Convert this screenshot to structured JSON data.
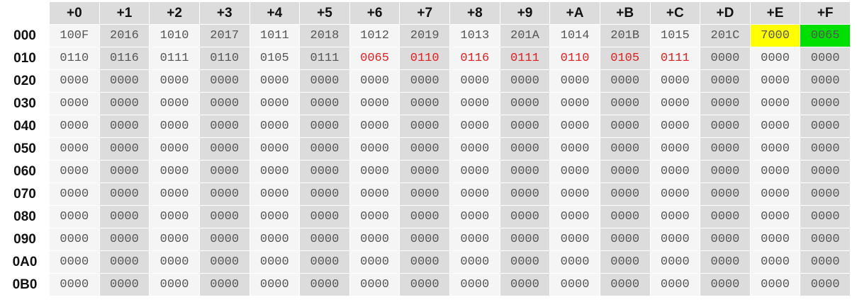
{
  "column_headers": [
    "+0",
    "+1",
    "+2",
    "+3",
    "+4",
    "+5",
    "+6",
    "+7",
    "+8",
    "+9",
    "+A",
    "+B",
    "+C",
    "+D",
    "+E",
    "+F"
  ],
  "rows": [
    {
      "address": "000",
      "cells": [
        "100F",
        "2016",
        "1010",
        "2017",
        "1011",
        "2018",
        "1012",
        "2019",
        "1013",
        "201A",
        "1014",
        "201B",
        "1015",
        "201C",
        "7000",
        "0065"
      ]
    },
    {
      "address": "010",
      "cells": [
        "0110",
        "0116",
        "0111",
        "0110",
        "0105",
        "0111",
        "0065",
        "0110",
        "0116",
        "0111",
        "0110",
        "0105",
        "0111",
        "0000",
        "0000",
        "0000"
      ]
    },
    {
      "address": "020",
      "cells": [
        "0000",
        "0000",
        "0000",
        "0000",
        "0000",
        "0000",
        "0000",
        "0000",
        "0000",
        "0000",
        "0000",
        "0000",
        "0000",
        "0000",
        "0000",
        "0000"
      ]
    },
    {
      "address": "030",
      "cells": [
        "0000",
        "0000",
        "0000",
        "0000",
        "0000",
        "0000",
        "0000",
        "0000",
        "0000",
        "0000",
        "0000",
        "0000",
        "0000",
        "0000",
        "0000",
        "0000"
      ]
    },
    {
      "address": "040",
      "cells": [
        "0000",
        "0000",
        "0000",
        "0000",
        "0000",
        "0000",
        "0000",
        "0000",
        "0000",
        "0000",
        "0000",
        "0000",
        "0000",
        "0000",
        "0000",
        "0000"
      ]
    },
    {
      "address": "050",
      "cells": [
        "0000",
        "0000",
        "0000",
        "0000",
        "0000",
        "0000",
        "0000",
        "0000",
        "0000",
        "0000",
        "0000",
        "0000",
        "0000",
        "0000",
        "0000",
        "0000"
      ]
    },
    {
      "address": "060",
      "cells": [
        "0000",
        "0000",
        "0000",
        "0000",
        "0000",
        "0000",
        "0000",
        "0000",
        "0000",
        "0000",
        "0000",
        "0000",
        "0000",
        "0000",
        "0000",
        "0000"
      ]
    },
    {
      "address": "070",
      "cells": [
        "0000",
        "0000",
        "0000",
        "0000",
        "0000",
        "0000",
        "0000",
        "0000",
        "0000",
        "0000",
        "0000",
        "0000",
        "0000",
        "0000",
        "0000",
        "0000"
      ]
    },
    {
      "address": "080",
      "cells": [
        "0000",
        "0000",
        "0000",
        "0000",
        "0000",
        "0000",
        "0000",
        "0000",
        "0000",
        "0000",
        "0000",
        "0000",
        "0000",
        "0000",
        "0000",
        "0000"
      ]
    },
    {
      "address": "090",
      "cells": [
        "0000",
        "0000",
        "0000",
        "0000",
        "0000",
        "0000",
        "0000",
        "0000",
        "0000",
        "0000",
        "0000",
        "0000",
        "0000",
        "0000",
        "0000",
        "0000"
      ]
    },
    {
      "address": "0A0",
      "cells": [
        "0000",
        "0000",
        "0000",
        "0000",
        "0000",
        "0000",
        "0000",
        "0000",
        "0000",
        "0000",
        "0000",
        "0000",
        "0000",
        "0000",
        "0000",
        "0000"
      ]
    },
    {
      "address": "0B0",
      "cells": [
        "0000",
        "0000",
        "0000",
        "0000",
        "0000",
        "0000",
        "0000",
        "0000",
        "0000",
        "0000",
        "0000",
        "0000",
        "0000",
        "0000",
        "0000",
        "0000"
      ]
    }
  ],
  "highlights": {
    "yellow_cell": {
      "row": "000",
      "column": "+E",
      "color": "#ffff00"
    },
    "green_cell": {
      "row": "000",
      "column": "+F",
      "color": "#00e000"
    },
    "red_text_cells": {
      "row": "010",
      "columns": [
        "+6",
        "+7",
        "+8",
        "+9",
        "+A",
        "+B",
        "+C"
      ],
      "color": "#e02020"
    }
  },
  "colors": {
    "header_bg": "#dcdcdc",
    "cell_light": "#f5f5f5",
    "cell_dark": "#dcdcdc",
    "value_text": "#555555"
  }
}
